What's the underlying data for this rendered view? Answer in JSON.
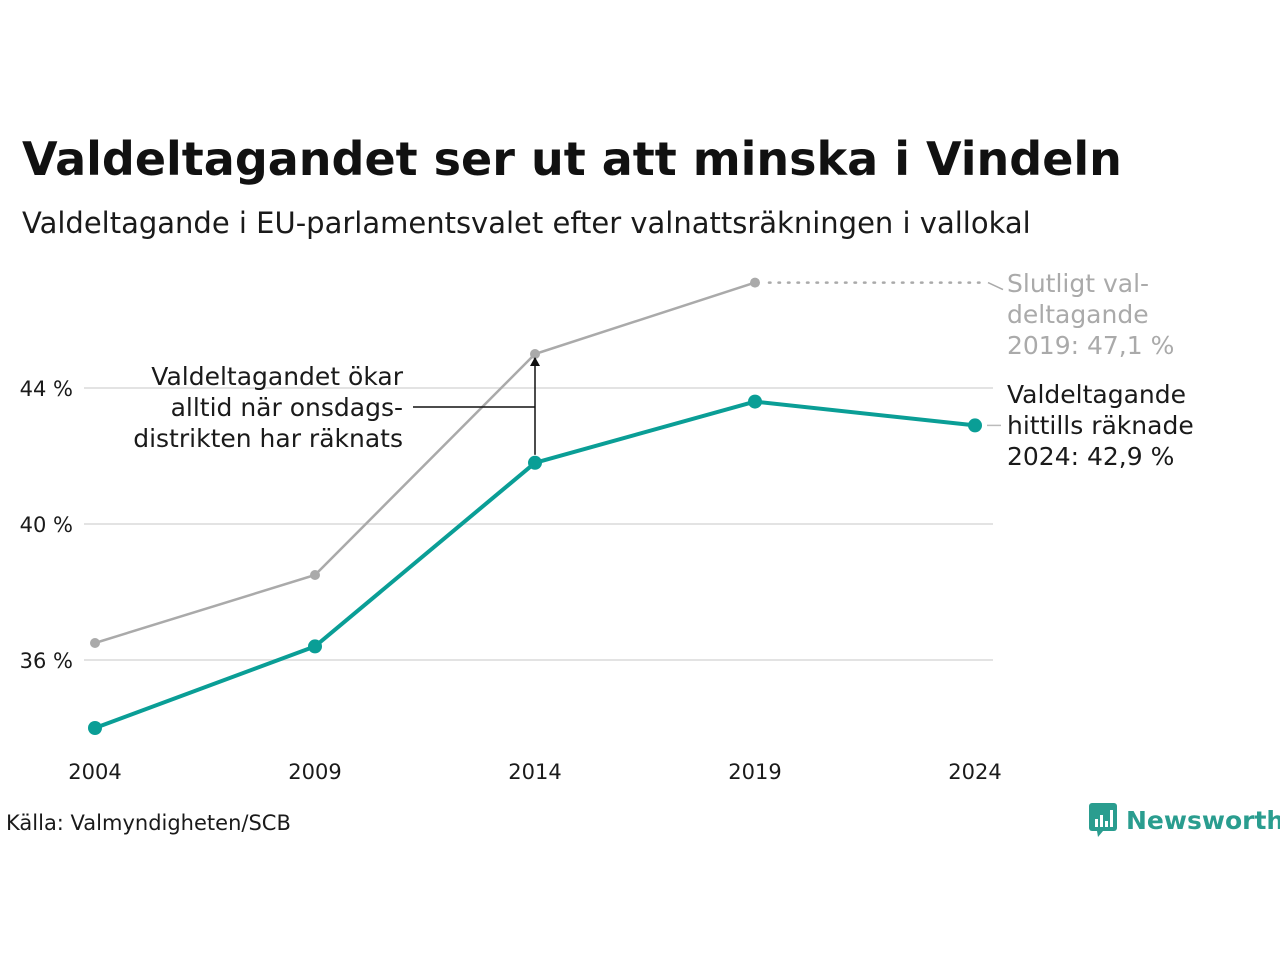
{
  "title": "Valdeltagandet ser ut att minska i Vindeln",
  "subtitle": "Valdeltagande i EU-parlamentsvalet efter valnattsräkningen i vallokal",
  "source": "Källa: Valmyndigheten/SCB",
  "brand": "Newsworthy",
  "colors": {
    "counted": "#0a9e96",
    "final": "#aaaaaa",
    "grid": "#e3e3e3",
    "text": "#1a1a1a"
  },
  "chart_data": {
    "type": "line",
    "x": [
      "2004",
      "2009",
      "2014",
      "2019",
      "2024"
    ],
    "y_tick_labels": [
      "36 %",
      "40 %",
      "44 %"
    ],
    "y_ticks": [
      36,
      40,
      44
    ],
    "ylim": [
      33,
      48.5
    ],
    "grid": "horizontal",
    "series": [
      {
        "key": "final",
        "values": [
          36.5,
          38.5,
          45.0,
          47.1,
          null
        ]
      },
      {
        "key": "counted",
        "values": [
          34.0,
          36.4,
          41.8,
          43.6,
          42.9
        ]
      }
    ],
    "annotations": {
      "final_label": [
        "Slutligt val-",
        "deltagande",
        "2019: 47,1 %"
      ],
      "counted_label": [
        "Valdeltagande",
        "hittills räknade",
        "2024: 42,9 %"
      ],
      "note": [
        "Valdeltagandet ökar",
        "alltid när onsdags-",
        "distrikten har räknats"
      ]
    }
  }
}
